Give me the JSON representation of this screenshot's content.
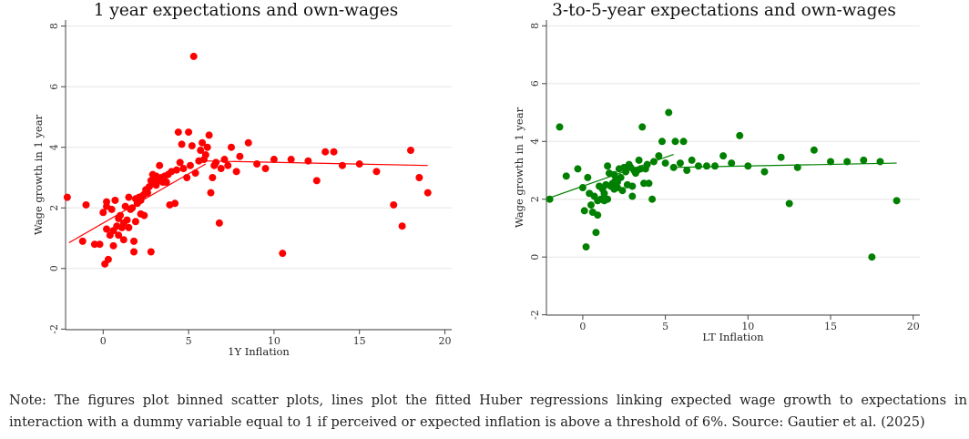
{
  "charts": [
    {
      "title": "1 year expectations and own-wages",
      "xlabel": "1Y Inflation",
      "ylabel": "Wage growth in 1 year"
    },
    {
      "title": "3-to-5-year expectations and own-wages",
      "xlabel": "LT Inflation",
      "ylabel": "Wage growth in 1 year"
    }
  ],
  "note": "Note: The figures plot binned scatter plots, lines plot the fitted Huber regressions linking expected wage growth to expectations in interaction with a dummy variable equal to 1 if perceived or expected inflation is above a threshold of 6%. Source: Gautier et al. (2025)",
  "chart_data": [
    {
      "type": "scatter",
      "title": "1 year expectations and own-wages",
      "xlabel": "1Y Inflation",
      "ylabel": "Wage growth in 1 year",
      "xlim": [
        -2.2,
        20.4
      ],
      "ylim": [
        -2.2,
        8.2
      ],
      "x_ticks": [
        0,
        5,
        10,
        15,
        20
      ],
      "y_ticks": [
        -2,
        0,
        2,
        4,
        6,
        8
      ],
      "grid": "horizontal",
      "color": "#ff0000",
      "points": [
        [
          -2.1,
          2.35
        ],
        [
          -1.2,
          0.9
        ],
        [
          -1.0,
          2.1
        ],
        [
          -0.5,
          0.8
        ],
        [
          -0.2,
          0.8
        ],
        [
          0.0,
          1.85
        ],
        [
          0.1,
          0.15
        ],
        [
          0.2,
          1.3
        ],
        [
          0.2,
          2.05
        ],
        [
          0.2,
          2.2
        ],
        [
          0.3,
          0.3
        ],
        [
          0.4,
          1.1
        ],
        [
          0.5,
          1.95
        ],
        [
          0.6,
          0.75
        ],
        [
          0.6,
          1.25
        ],
        [
          0.7,
          2.25
        ],
        [
          0.8,
          1.4
        ],
        [
          0.9,
          1.1
        ],
        [
          0.9,
          1.65
        ],
        [
          1.0,
          1.75
        ],
        [
          1.1,
          1.35
        ],
        [
          1.2,
          0.95
        ],
        [
          1.2,
          1.5
        ],
        [
          1.3,
          2.05
        ],
        [
          1.4,
          1.6
        ],
        [
          1.5,
          2.35
        ],
        [
          1.5,
          1.35
        ],
        [
          1.6,
          1.95
        ],
        [
          1.7,
          2.0
        ],
        [
          1.8,
          0.55
        ],
        [
          1.8,
          0.9
        ],
        [
          1.9,
          2.3
        ],
        [
          1.9,
          1.55
        ],
        [
          2.0,
          2.15
        ],
        [
          2.1,
          2.35
        ],
        [
          2.2,
          2.25
        ],
        [
          2.2,
          1.8
        ],
        [
          2.3,
          2.4
        ],
        [
          2.4,
          1.75
        ],
        [
          2.4,
          2.45
        ],
        [
          2.5,
          2.6
        ],
        [
          2.6,
          2.5
        ],
        [
          2.7,
          2.7
        ],
        [
          2.8,
          2.9
        ],
        [
          2.8,
          0.55
        ],
        [
          2.9,
          3.1
        ],
        [
          3.0,
          2.8
        ],
        [
          3.0,
          2.95
        ],
        [
          3.1,
          2.75
        ],
        [
          3.1,
          3.05
        ],
        [
          3.2,
          2.95
        ],
        [
          3.3,
          3.4
        ],
        [
          3.3,
          2.9
        ],
        [
          3.4,
          3.0
        ],
        [
          3.5,
          2.85
        ],
        [
          3.6,
          3.05
        ],
        [
          3.7,
          2.85
        ],
        [
          3.8,
          3.1
        ],
        [
          3.9,
          2.1
        ],
        [
          4.0,
          3.2
        ],
        [
          4.2,
          2.15
        ],
        [
          4.3,
          3.25
        ],
        [
          4.4,
          4.5
        ],
        [
          4.5,
          3.5
        ],
        [
          4.6,
          4.1
        ],
        [
          4.7,
          3.3
        ],
        [
          4.9,
          3.0
        ],
        [
          5.0,
          4.5
        ],
        [
          5.1,
          3.4
        ],
        [
          5.2,
          4.05
        ],
        [
          5.3,
          7.0
        ],
        [
          5.4,
          3.15
        ],
        [
          5.6,
          3.55
        ],
        [
          5.7,
          3.9
        ],
        [
          5.8,
          4.15
        ],
        [
          5.9,
          3.6
        ],
        [
          6.0,
          3.75
        ],
        [
          6.1,
          4.0
        ],
        [
          6.2,
          4.4
        ],
        [
          6.3,
          2.5
        ],
        [
          6.4,
          3.0
        ],
        [
          6.5,
          3.4
        ],
        [
          6.6,
          3.5
        ],
        [
          6.8,
          1.5
        ],
        [
          6.9,
          3.3
        ],
        [
          7.1,
          3.6
        ],
        [
          7.3,
          3.4
        ],
        [
          7.5,
          4.0
        ],
        [
          7.8,
          3.2
        ],
        [
          8.0,
          3.7
        ],
        [
          8.5,
          4.15
        ],
        [
          9.0,
          3.45
        ],
        [
          9.5,
          3.3
        ],
        [
          10.0,
          3.6
        ],
        [
          10.5,
          0.5
        ],
        [
          11.0,
          3.6
        ],
        [
          12.0,
          3.55
        ],
        [
          12.5,
          2.9
        ],
        [
          13.0,
          3.85
        ],
        [
          13.5,
          3.85
        ],
        [
          14.0,
          3.4
        ],
        [
          15.0,
          3.45
        ],
        [
          16.0,
          3.2
        ],
        [
          17.0,
          2.1
        ],
        [
          17.5,
          1.4
        ],
        [
          18.0,
          3.9
        ],
        [
          18.5,
          3.0
        ],
        [
          19.0,
          2.5
        ]
      ],
      "fit_lines": [
        {
          "x": [
            -2.0,
            6.0
          ],
          "y": [
            0.85,
            3.45
          ]
        },
        {
          "x": [
            6.0,
            19.0
          ],
          "y": [
            3.55,
            3.4
          ]
        }
      ]
    },
    {
      "type": "scatter",
      "title": "3-to-5-year expectations and own-wages",
      "xlabel": "LT Inflation",
      "ylabel": "Wage growth in 1 year",
      "xlim": [
        -2.2,
        20.4
      ],
      "ylim": [
        -2.2,
        8.2
      ],
      "x_ticks": [
        0,
        5,
        10,
        15,
        20
      ],
      "y_ticks": [
        -2,
        0,
        2,
        4,
        6,
        8
      ],
      "grid": "horizontal",
      "color": "#008000",
      "points": [
        [
          -2.0,
          2.0
        ],
        [
          -1.4,
          4.5
        ],
        [
          -1.0,
          2.8
        ],
        [
          -0.3,
          3.05
        ],
        [
          0.0,
          2.4
        ],
        [
          0.1,
          1.6
        ],
        [
          0.2,
          0.35
        ],
        [
          0.3,
          2.75
        ],
        [
          0.4,
          2.2
        ],
        [
          0.5,
          1.8
        ],
        [
          0.6,
          1.55
        ],
        [
          0.7,
          2.1
        ],
        [
          0.8,
          0.85
        ],
        [
          0.9,
          1.95
        ],
        [
          0.9,
          1.45
        ],
        [
          1.0,
          2.45
        ],
        [
          1.1,
          2.0
        ],
        [
          1.2,
          2.35
        ],
        [
          1.3,
          2.2
        ],
        [
          1.3,
          1.95
        ],
        [
          1.4,
          2.5
        ],
        [
          1.5,
          3.15
        ],
        [
          1.5,
          2.0
        ],
        [
          1.6,
          2.9
        ],
        [
          1.7,
          2.45
        ],
        [
          1.8,
          2.55
        ],
        [
          1.9,
          2.85
        ],
        [
          1.9,
          2.35
        ],
        [
          2.0,
          2.7
        ],
        [
          2.1,
          2.4
        ],
        [
          2.1,
          2.6
        ],
        [
          2.2,
          3.05
        ],
        [
          2.3,
          2.75
        ],
        [
          2.4,
          2.3
        ],
        [
          2.5,
          3.1
        ],
        [
          2.6,
          2.95
        ],
        [
          2.7,
          2.5
        ],
        [
          2.8,
          3.2
        ],
        [
          2.9,
          3.1
        ],
        [
          3.0,
          2.1
        ],
        [
          3.0,
          2.45
        ],
        [
          3.1,
          3.0
        ],
        [
          3.2,
          2.9
        ],
        [
          3.3,
          3.0
        ],
        [
          3.4,
          3.35
        ],
        [
          3.5,
          3.05
        ],
        [
          3.6,
          4.5
        ],
        [
          3.7,
          2.55
        ],
        [
          3.8,
          3.05
        ],
        [
          3.9,
          3.2
        ],
        [
          4.0,
          2.55
        ],
        [
          4.2,
          2.0
        ],
        [
          4.3,
          3.3
        ],
        [
          4.6,
          3.5
        ],
        [
          4.8,
          4.0
        ],
        [
          5.0,
          3.25
        ],
        [
          5.2,
          5.0
        ],
        [
          5.5,
          3.1
        ],
        [
          5.6,
          4.0
        ],
        [
          5.9,
          3.25
        ],
        [
          6.1,
          4.0
        ],
        [
          6.3,
          3.0
        ],
        [
          6.6,
          3.35
        ],
        [
          7.0,
          3.15
        ],
        [
          7.5,
          3.15
        ],
        [
          8.0,
          3.15
        ],
        [
          8.5,
          3.5
        ],
        [
          9.0,
          3.25
        ],
        [
          9.5,
          4.2
        ],
        [
          10.0,
          3.15
        ],
        [
          11.0,
          2.95
        ],
        [
          12.0,
          3.45
        ],
        [
          12.5,
          1.85
        ],
        [
          13.0,
          3.1
        ],
        [
          14.0,
          3.7
        ],
        [
          15.0,
          3.3
        ],
        [
          16.0,
          3.3
        ],
        [
          17.0,
          3.35
        ],
        [
          17.5,
          0.0
        ],
        [
          18.0,
          3.3
        ],
        [
          19.0,
          1.95
        ]
      ],
      "fit_lines": [
        {
          "x": [
            -2.0,
            5.5
          ],
          "y": [
            2.05,
            3.55
          ]
        },
        {
          "x": [
            5.5,
            19.0
          ],
          "y": [
            3.1,
            3.25
          ]
        }
      ]
    }
  ]
}
